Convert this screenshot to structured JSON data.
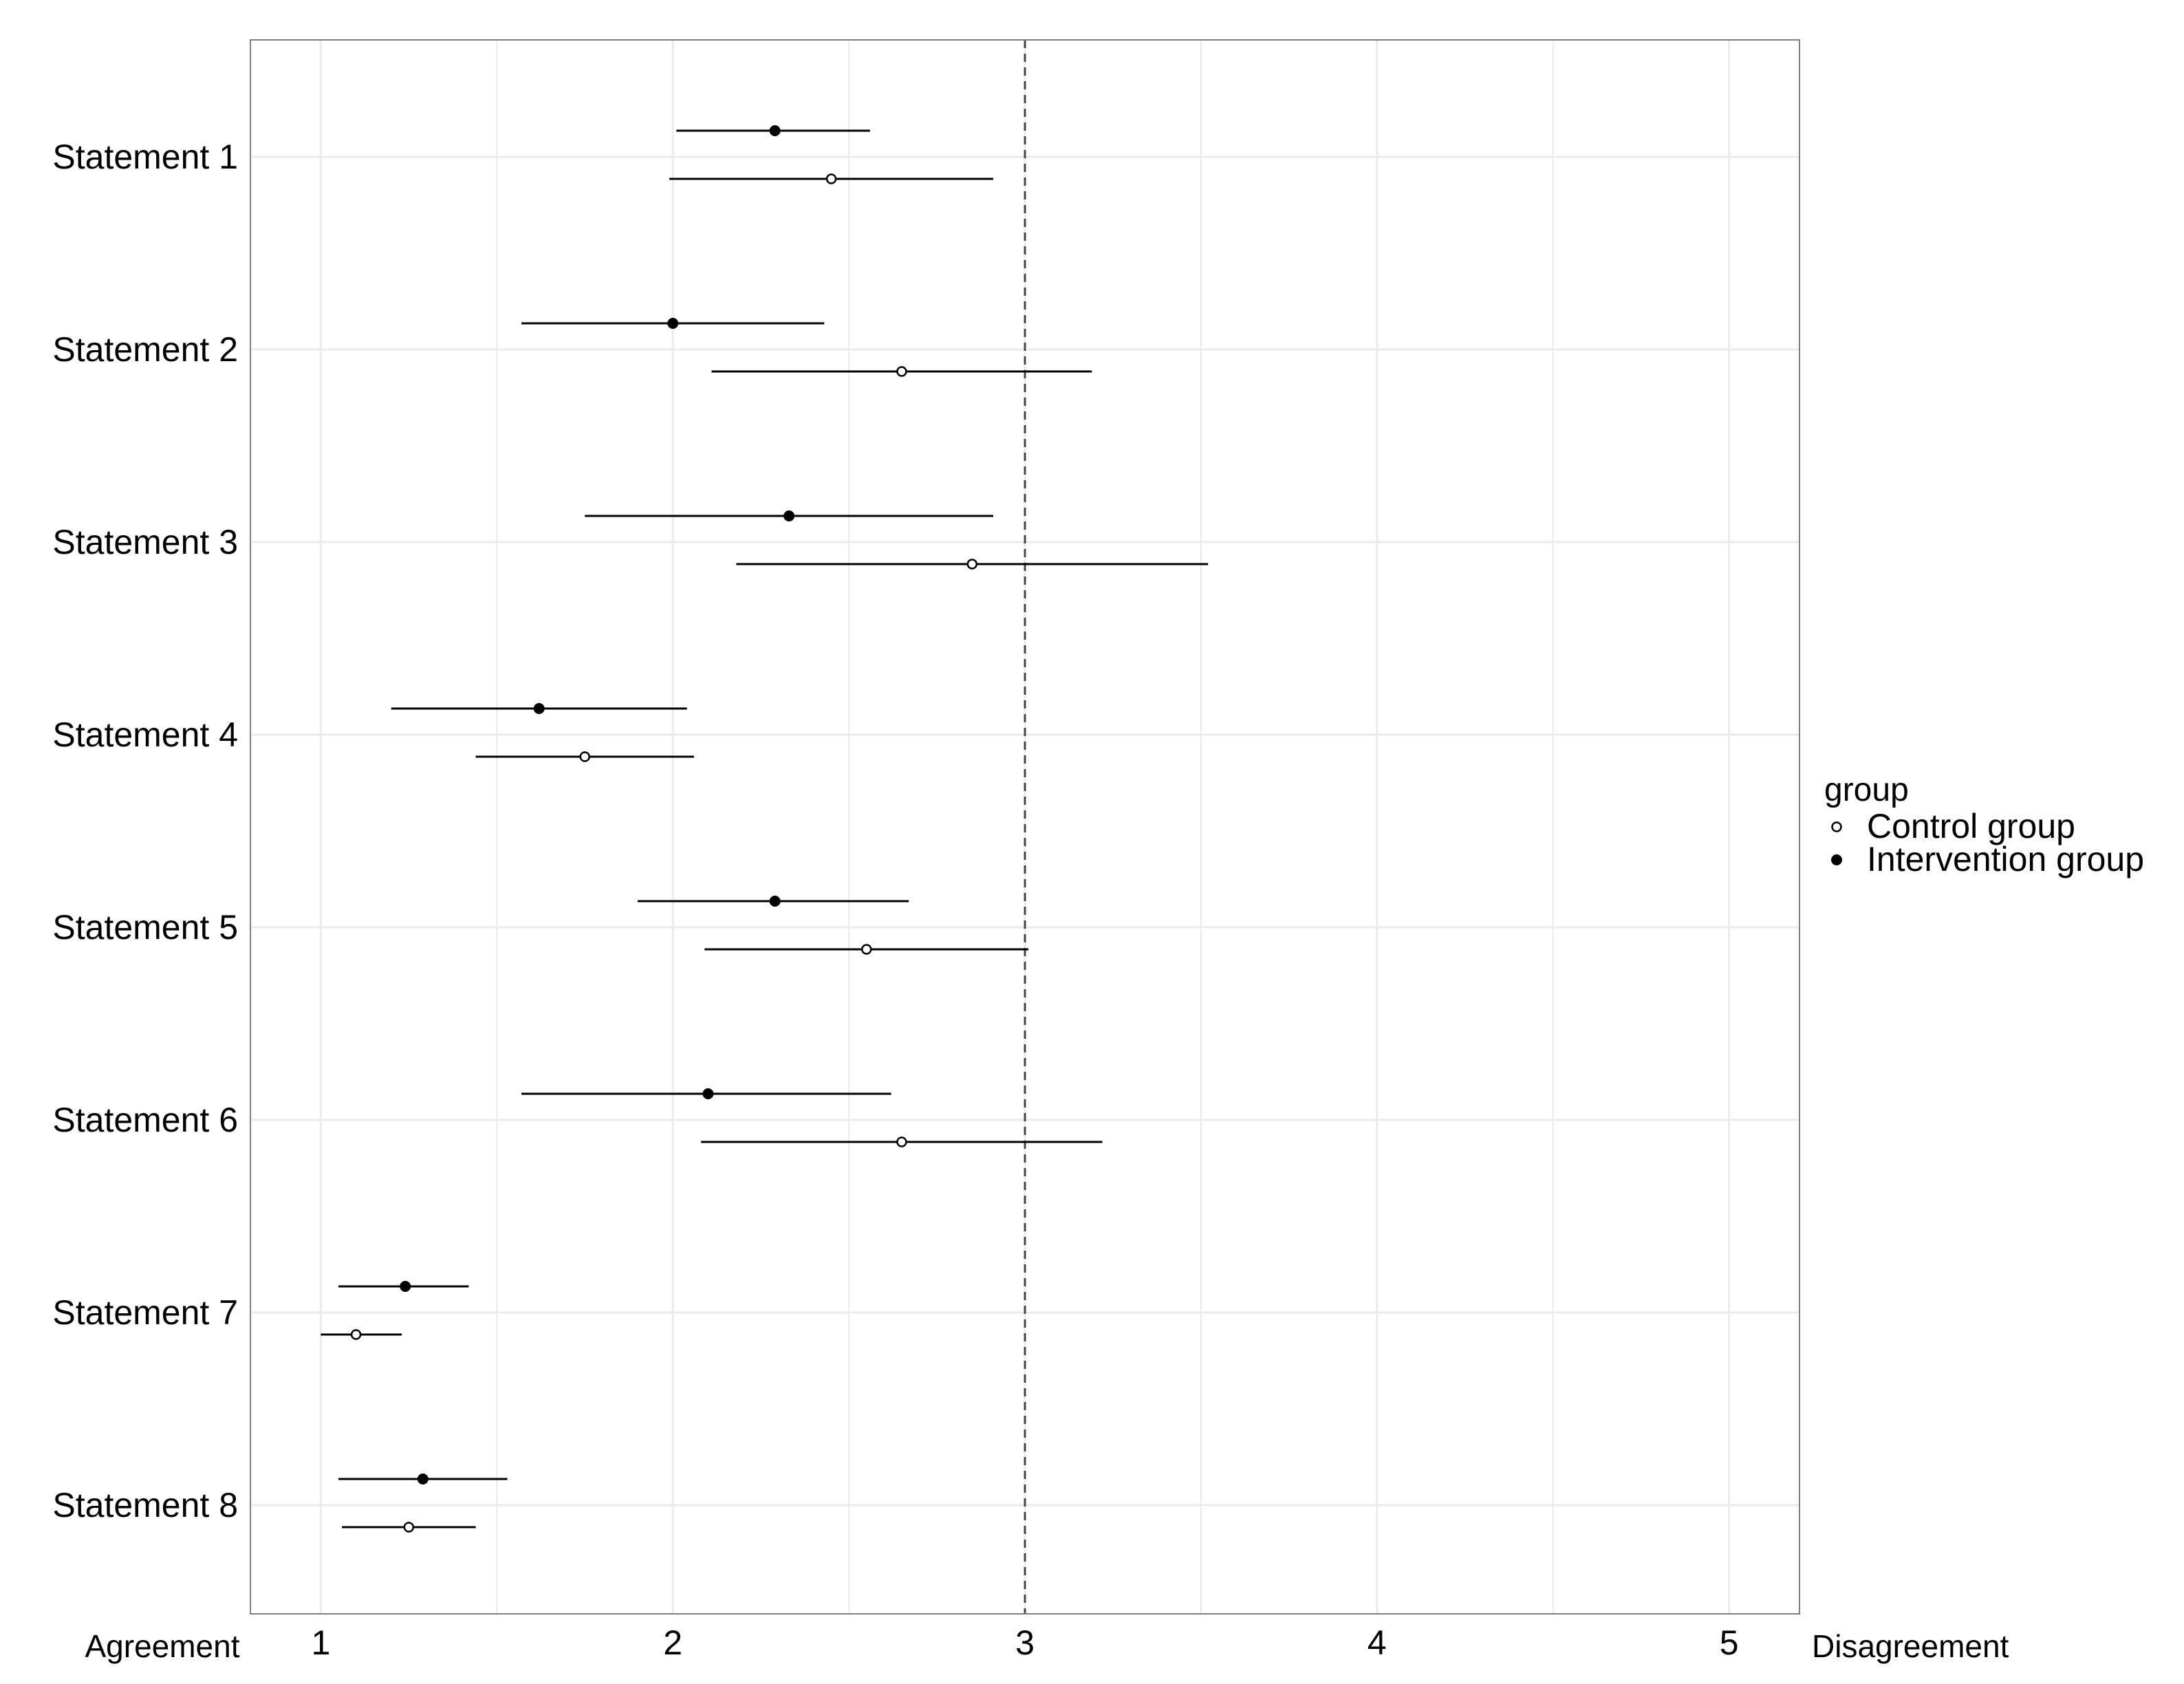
{
  "chart_data": {
    "type": "scatter",
    "subtype": "dot-and-interval",
    "title": "",
    "xlabel": "",
    "ylabel": "",
    "xlim": [
      0.8,
      5.2
    ],
    "x_ticks": [
      1,
      2,
      3,
      4,
      5
    ],
    "x_tick_labels": [
      "1",
      "2",
      "3",
      "4",
      "5"
    ],
    "reference_line": {
      "x": 3,
      "style": "dashed"
    },
    "left_end_label": "Agreement",
    "right_end_label": "Disagreement",
    "grid": true,
    "categories": [
      "Statement 1",
      "Statement 2",
      "Statement 3",
      "Statement 4",
      "Statement 5",
      "Statement 6",
      "Statement 7",
      "Statement 8"
    ],
    "legend": {
      "title": "group",
      "placement": "right",
      "entries": [
        "Control group",
        "Intervention group"
      ]
    },
    "series": [
      {
        "name": "Intervention group",
        "marker": "filled",
        "points": [
          {
            "category": "Statement 1",
            "mean": 2.29,
            "low": 2.01,
            "high": 2.56
          },
          {
            "category": "Statement 2",
            "mean": 2.0,
            "low": 1.57,
            "high": 2.43
          },
          {
            "category": "Statement 3",
            "mean": 2.33,
            "low": 1.75,
            "high": 2.91
          },
          {
            "category": "Statement 4",
            "mean": 1.62,
            "low": 1.2,
            "high": 2.04
          },
          {
            "category": "Statement 5",
            "mean": 2.29,
            "low": 1.9,
            "high": 2.67
          },
          {
            "category": "Statement 6",
            "mean": 2.1,
            "low": 1.57,
            "high": 2.62
          },
          {
            "category": "Statement 7",
            "mean": 1.24,
            "low": 1.05,
            "high": 1.42
          },
          {
            "category": "Statement 8",
            "mean": 1.29,
            "low": 1.05,
            "high": 1.53
          }
        ]
      },
      {
        "name": "Control group",
        "marker": "open",
        "points": [
          {
            "category": "Statement 1",
            "mean": 2.45,
            "low": 1.99,
            "high": 2.91
          },
          {
            "category": "Statement 2",
            "mean": 2.65,
            "low": 2.11,
            "high": 3.19
          },
          {
            "category": "Statement 3",
            "mean": 2.85,
            "low": 2.18,
            "high": 3.52
          },
          {
            "category": "Statement 4",
            "mean": 1.75,
            "low": 1.44,
            "high": 2.06
          },
          {
            "category": "Statement 5",
            "mean": 2.55,
            "low": 2.09,
            "high": 3.01
          },
          {
            "category": "Statement 6",
            "mean": 2.65,
            "low": 2.08,
            "high": 3.22
          },
          {
            "category": "Statement 7",
            "mean": 1.1,
            "low": 1.0,
            "high": 1.23
          },
          {
            "category": "Statement 8",
            "mean": 1.25,
            "low": 1.06,
            "high": 1.44
          }
        ]
      }
    ],
    "colors": {
      "line": "#000000",
      "grid": "#ebebeb",
      "panel_border": "#7f7f7f",
      "reference_line": "#444444"
    }
  }
}
